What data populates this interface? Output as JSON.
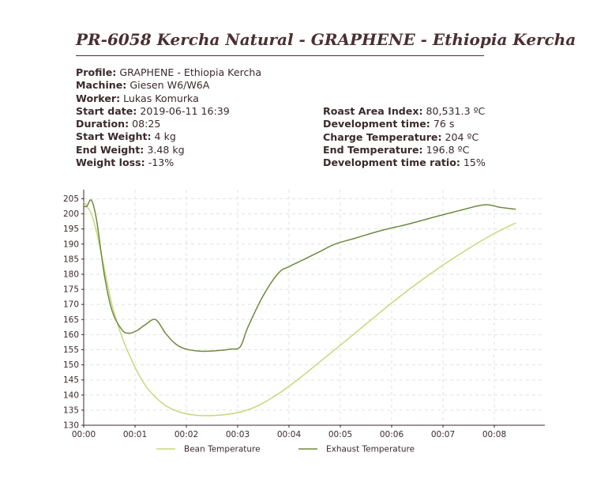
{
  "title": "PR-6058 Kercha Natural - GRAPHENE - Ethiopia Kercha",
  "info_left": [
    {
      "label": "Profile:",
      "value": "GRAPHENE - Ethiopia Kercha"
    },
    {
      "label": "Machine:",
      "value": "Giesen W6/W6A"
    },
    {
      "label": "Worker:",
      "value": "Lukas Komurka"
    },
    {
      "label": "Start date:",
      "value": "2019-06-11 16:39"
    },
    {
      "label": "Duration:",
      "value": "08:25"
    },
    {
      "label": "Start Weight:",
      "value": "4 kg"
    },
    {
      "label": "End Weight:",
      "value": "3.48 kg"
    },
    {
      "label": "Weight loss:",
      "value": "-13%"
    }
  ],
  "info_right": [
    {
      "label": "Roast Area Index:",
      "value": "80,531.3 ºC"
    },
    {
      "label": "Development time:",
      "value": "76 s"
    },
    {
      "label": "Charge Temperature:",
      "value": "204 ºC"
    },
    {
      "label": "End Temperature:",
      "value": "196.8 ºC"
    },
    {
      "label": "Development time ratio:",
      "value": "15%"
    }
  ],
  "chart_data": {
    "type": "line",
    "xlabel": "",
    "ylabel": "",
    "x_unit": "minutes",
    "xlim": [
      0,
      9
    ],
    "ylim": [
      130,
      208
    ],
    "x_ticks": [
      0,
      1,
      2,
      3,
      4,
      5,
      6,
      7,
      8
    ],
    "x_tick_labels": [
      "00:00",
      "00:01",
      "00:02",
      "00:03",
      "00:04",
      "00:05",
      "00:06",
      "00:07",
      "00:08"
    ],
    "y_ticks": [
      130,
      135,
      140,
      145,
      150,
      155,
      160,
      165,
      170,
      175,
      180,
      185,
      190,
      195,
      200,
      205
    ],
    "grid": true,
    "legend_position": "bottom",
    "series": [
      {
        "name": "Bean Temperature",
        "color": "#c5d97a",
        "x": [
          0,
          0.08,
          0.15,
          0.25,
          0.4,
          0.55,
          0.75,
          0.95,
          1.1,
          1.3,
          1.6,
          1.9,
          2.2,
          2.5,
          2.8,
          3.1,
          3.4,
          3.8,
          4.2,
          4.6,
          5.0,
          5.5,
          6.0,
          6.5,
          7.0,
          7.5,
          8.0,
          8.42
        ],
        "y": [
          204,
          202,
          200,
          194,
          182,
          170,
          159,
          151,
          146,
          141,
          136.5,
          134.2,
          133.3,
          133.2,
          133.6,
          134.6,
          136.5,
          140.5,
          145.5,
          151,
          156.5,
          163.5,
          170.5,
          177,
          183,
          188.5,
          193.5,
          197
        ]
      },
      {
        "name": "Exhaust Temperature",
        "color": "#6e8a3e",
        "x": [
          0,
          0.06,
          0.15,
          0.25,
          0.4,
          0.55,
          0.75,
          0.9,
          1.05,
          1.2,
          1.4,
          1.6,
          1.8,
          2.0,
          2.3,
          2.6,
          2.85,
          3.05,
          3.2,
          3.5,
          3.8,
          4.0,
          4.3,
          4.6,
          4.9,
          5.3,
          5.8,
          6.3,
          6.8,
          7.3,
          7.8,
          8.1,
          8.42
        ],
        "y": [
          202.5,
          202.5,
          204.5,
          198,
          180,
          168,
          161.5,
          160.5,
          161.5,
          163.3,
          165,
          160.3,
          156.8,
          155.2,
          154.5,
          154.7,
          155.2,
          156,
          162.5,
          173,
          180.5,
          182.5,
          185,
          187.5,
          190,
          192,
          194.5,
          196.5,
          198.8,
          201,
          203,
          202.2,
          201.5
        ]
      }
    ]
  }
}
